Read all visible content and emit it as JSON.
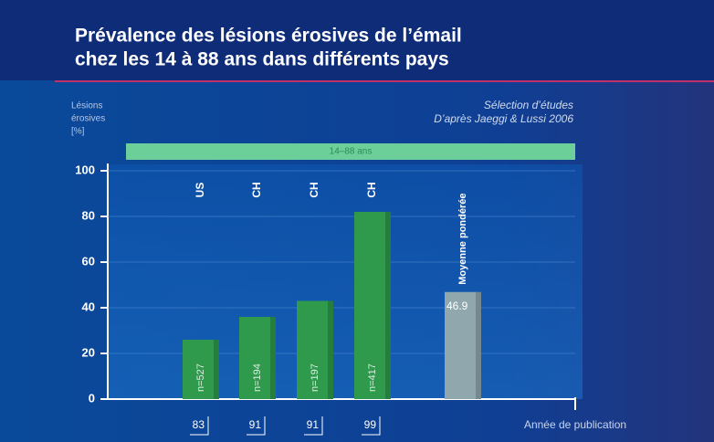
{
  "chart_data": {
    "type": "bar",
    "title": [
      "Prévalence des lésions érosives  de l’émail",
      "chez les 14 à 88 ans dans différents pays"
    ],
    "y_label": [
      "Lésions",
      "érosives",
      "[%]"
    ],
    "source": [
      "Sélection d’études",
      "D’après Jaeggi & Lussi 2006"
    ],
    "banner": "14–88 ans",
    "x_label": "Année de publication",
    "categories": [
      "US",
      "CH",
      "CH",
      "CH",
      "Moyenne pondérée"
    ],
    "values": [
      26,
      36,
      43,
      82,
      46.9
    ],
    "colors": [
      "#2f9a4c",
      "#2f9a4c",
      "#2f9a4c",
      "#2f9a4c",
      "#8fa7ad"
    ],
    "sample_sizes": [
      "n=527",
      "n=194",
      "n=197",
      "n=417",
      null
    ],
    "years": [
      "83",
      "91",
      "91",
      "99",
      null
    ],
    "ylim": [
      0,
      100
    ],
    "yticks": [
      0,
      20,
      40,
      60,
      80,
      100
    ],
    "grid": true
  }
}
